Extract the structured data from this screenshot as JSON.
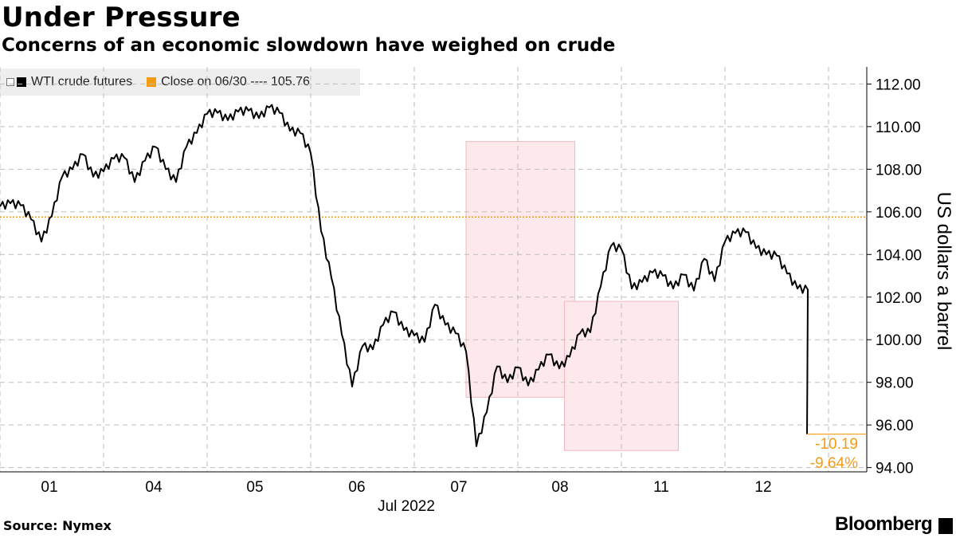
{
  "header": {
    "title": "Under Pressure",
    "subtitle": "Concerns of an economic slowdown have weighed on crude"
  },
  "legend": {
    "series_label": "WTI crude futures",
    "close_label": "Close on 06/30 ---- 105.76"
  },
  "footer": {
    "source": "Source: Nymex",
    "brand": "Bloomberg"
  },
  "colors": {
    "series": "#000000",
    "reference": "#f39c12",
    "highlight_fill": "#fde8ec",
    "highlight_stroke": "#f2b8c2",
    "grid": "#bdbdbd"
  },
  "chart_data": {
    "type": "line",
    "ylabel": "US dollars a barrel",
    "ylim": [
      93.8,
      112.8
    ],
    "yticks": [
      "94.00",
      "96.00",
      "98.00",
      "100.00",
      "102.00",
      "104.00",
      "106.00",
      "108.00",
      "110.00",
      "112.00"
    ],
    "x_categories": [
      "01",
      "04",
      "05",
      "06",
      "07",
      "08",
      "11",
      "12"
    ],
    "x_group_label": "Jul 2022",
    "reference_line": {
      "value": 105.76,
      "label": "Close on 06/30"
    },
    "annotations": [
      "-10.19",
      "-9.64%"
    ],
    "highlight_ranges": [
      {
        "x": [
          4.5,
          5.55
        ],
        "y": [
          97.3,
          109.3
        ]
      },
      {
        "x": [
          5.45,
          6.55
        ],
        "y": [
          94.8,
          101.8
        ]
      },
      {
        "x": [
          11.5,
          12.75
        ],
        "y": [
          94.8,
          103.4
        ]
      }
    ],
    "series": [
      {
        "name": "WTI crude futures",
        "x": [
          0.0,
          0.1,
          0.2,
          0.3,
          0.4,
          0.5,
          0.6,
          0.7,
          0.8,
          0.9,
          1.0,
          1.1,
          1.2,
          1.3,
          1.4,
          1.5,
          1.6,
          1.7,
          1.8,
          1.9,
          2.0,
          2.1,
          2.2,
          2.3,
          2.4,
          2.5,
          2.6,
          2.7,
          2.8,
          2.9,
          3.0,
          3.1,
          3.2,
          3.3,
          3.4,
          3.5,
          3.6,
          3.7,
          3.8,
          3.9,
          4.0,
          4.1,
          4.2,
          4.3,
          4.4,
          4.5,
          4.6,
          4.7,
          4.8,
          4.9,
          5.0,
          5.1,
          5.2,
          5.3,
          5.4,
          5.5,
          5.6,
          5.7,
          5.8,
          5.9,
          6.0,
          6.1,
          6.2,
          6.3,
          6.4,
          6.5,
          6.6,
          6.7,
          6.8,
          6.9,
          7.0,
          7.1,
          7.2,
          7.3,
          7.4,
          7.5,
          7.6,
          7.7,
          7.8,
          7.9,
          8.0,
          8.1,
          8.2,
          8.3,
          8.4,
          8.5,
          8.6,
          8.7,
          8.8,
          8.9,
          9.0,
          9.1,
          9.2,
          9.3,
          9.4,
          9.5,
          9.6,
          9.7,
          9.8,
          9.9,
          10.0,
          10.1,
          10.2,
          10.3,
          10.4,
          10.5,
          10.6,
          10.7,
          10.8,
          10.9,
          11.0,
          11.1,
          11.2,
          11.3,
          11.4,
          11.5,
          11.6,
          11.7,
          11.8,
          11.9,
          12.0,
          12.1,
          12.2,
          12.3,
          12.4,
          12.5
        ],
        "values": [
          106.0,
          106.6,
          106.2,
          105.4,
          104.8,
          105.7,
          107.4,
          108.2,
          108.6,
          107.4,
          108.1,
          108.4,
          108.3,
          107.6,
          108.3,
          108.8,
          108.2,
          107.3,
          108.8,
          109.9,
          110.5,
          110.4,
          110.5,
          110.6,
          110.5,
          110.6,
          110.8,
          110.4,
          110.0,
          109.6,
          108.5,
          105.3,
          102.8,
          100.0,
          98.0,
          99.6,
          99.3,
          100.9,
          101.2,
          100.2,
          100.4,
          99.8,
          101.4,
          100.9,
          100.2,
          99.2,
          95.2,
          96.5,
          98.5,
          98.2,
          98.6,
          97.6,
          98.8,
          99.2,
          98.4,
          99.4,
          100.2,
          100.1,
          102.7,
          104.3,
          104.0,
          102.6,
          102.6,
          102.9,
          103.2,
          102.3,
          102.8,
          102.5,
          103.7,
          102.5,
          104.8,
          104.9,
          104.8,
          104.5,
          103.9,
          103.7,
          103.3,
          102.3,
          102.1,
          103.8,
          104.2,
          103.4,
          103.6,
          102.9,
          103.4,
          102.6,
          102.5,
          102.8,
          103.2,
          102.6,
          102.4,
          101.7,
          101.4,
          99.8,
          99.2,
          97.2,
          96.8,
          96.5,
          96.1,
          95.5,
          95.6,
          95.7,
          95.6,
          95.6,
          95.57,
          95.57,
          95.57,
          95.57,
          95.57,
          95.57,
          95.57,
          95.57,
          95.57,
          95.57,
          95.57,
          95.57,
          95.57,
          95.57,
          95.57,
          95.57,
          95.57,
          95.57,
          95.57,
          95.57,
          95.57,
          95.57
        ]
      }
    ]
  }
}
